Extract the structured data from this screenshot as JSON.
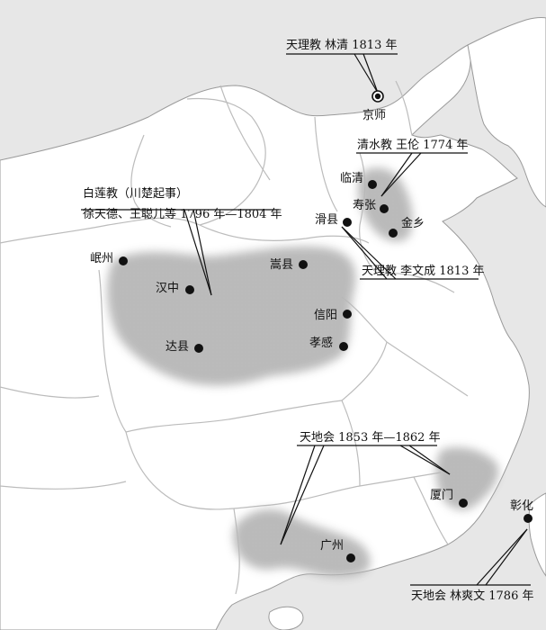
{
  "map": {
    "cities": [
      {
        "id": "jingshi",
        "name": "京师",
        "capital": true
      },
      {
        "id": "linqing",
        "name": "临清"
      },
      {
        "id": "shouzhang",
        "name": "寿张"
      },
      {
        "id": "huaxian",
        "name": "滑县"
      },
      {
        "id": "jinxiang",
        "name": "金乡"
      },
      {
        "id": "minzhou",
        "name": "岷州"
      },
      {
        "id": "hanzhong",
        "name": "汉中"
      },
      {
        "id": "songxian",
        "name": "嵩县"
      },
      {
        "id": "xinyang",
        "name": "信阳"
      },
      {
        "id": "daxian",
        "name": "达县"
      },
      {
        "id": "xiaogan",
        "name": "孝感"
      },
      {
        "id": "xiamen",
        "name": "厦门"
      },
      {
        "id": "guangzhou",
        "name": "广州"
      },
      {
        "id": "zhanghua",
        "name": "彰化"
      }
    ],
    "annotations": {
      "tianli_linqing": "天理教 林清 1813 年",
      "qingshui": "清水教 王伦 1774 年",
      "bailian_line1": "白莲教（川楚起事）",
      "bailian_line2": "徐天德、王聪儿等 1796 年—1804 年",
      "tianli_liwencheng": "天理教 李文成 1813 年",
      "tiandihui_1853": "天地会 1853 年—1862 年",
      "tiandihui_1786": "天地会 林爽文 1786 年"
    },
    "colors": {
      "land": "#ffffff",
      "sea": "#e7e7e7",
      "region_fill": "#9a9a9a",
      "border": "#bcbcbc"
    }
  }
}
